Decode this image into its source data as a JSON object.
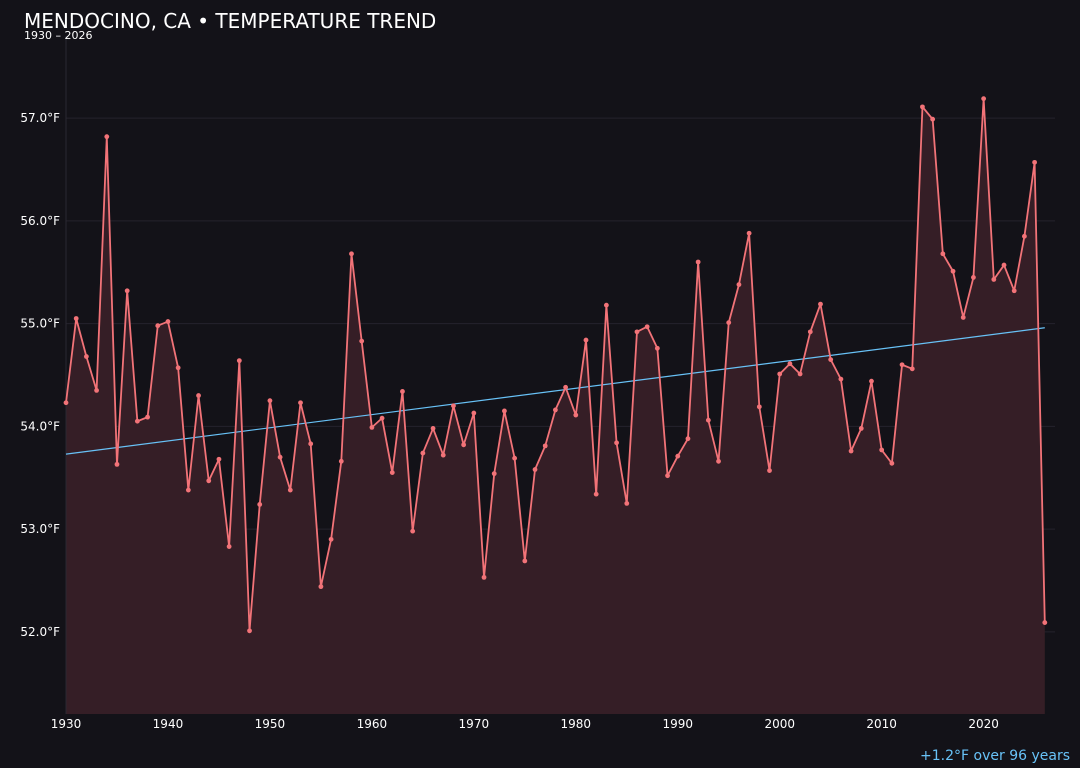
{
  "chart_data": {
    "type": "line",
    "title": "MENDOCINO, CA • TEMPERATURE TREND",
    "subtitle": "1930 – 2026",
    "xlabel": "",
    "ylabel": "",
    "xlim": [
      1930,
      2027
    ],
    "ylim": [
      51.2,
      57.8
    ],
    "x_ticks": [
      1930,
      1940,
      1950,
      1960,
      1970,
      1980,
      1990,
      2000,
      2010,
      2020
    ],
    "x_tick_labels": [
      "1930",
      "1940",
      "1950",
      "1960",
      "1970",
      "1980",
      "1990",
      "2000",
      "2010",
      "2020"
    ],
    "y_ticks": [
      52,
      53,
      54,
      55,
      56,
      57
    ],
    "y_tick_labels": [
      "52.0°F",
      "53.0°F",
      "54.0°F",
      "55.0°F",
      "56.0°F",
      "57.0°F"
    ],
    "grid": true,
    "series": [
      {
        "x": [
          1930,
          1931,
          1932,
          1933,
          1934,
          1935,
          1936,
          1937,
          1938,
          1939,
          1940,
          1941,
          1942,
          1943,
          1944,
          1945,
          1946,
          1947,
          1948,
          1949,
          1950,
          1951,
          1952,
          1953,
          1954,
          1955,
          1956,
          1957,
          1958,
          1959,
          1960,
          1961,
          1962,
          1963,
          1964,
          1965,
          1966,
          1967,
          1968,
          1969,
          1970,
          1971,
          1972,
          1973,
          1974,
          1975,
          1976,
          1977,
          1978,
          1979,
          1980,
          1981,
          1982,
          1983,
          1984,
          1985,
          1986,
          1987,
          1988,
          1989,
          1990,
          1991,
          1992,
          1993,
          1994,
          1995,
          1996,
          1997,
          1998,
          1999,
          2000,
          2001,
          2002,
          2003,
          2004,
          2005,
          2006,
          2007,
          2008,
          2009,
          2010,
          2011,
          2012,
          2013,
          2014,
          2015,
          2016,
          2017,
          2018,
          2019,
          2020,
          2021,
          2022,
          2023,
          2024,
          2025,
          2026
        ],
        "values": [
          54.23,
          55.05,
          54.68,
          54.35,
          56.82,
          53.63,
          55.32,
          54.05,
          54.09,
          54.98,
          55.02,
          54.57,
          53.38,
          54.3,
          53.47,
          53.68,
          52.83,
          54.64,
          52.01,
          53.24,
          54.25,
          53.7,
          53.38,
          54.23,
          53.83,
          52.44,
          52.9,
          53.66,
          55.68,
          54.83,
          53.99,
          54.08,
          53.55,
          54.34,
          52.98,
          53.74,
          53.98,
          53.72,
          54.2,
          53.82,
          54.13,
          52.53,
          53.54,
          54.15,
          53.69,
          52.69,
          53.58,
          53.81,
          54.16,
          54.38,
          54.11,
          54.84,
          53.34,
          55.18,
          53.84,
          53.25,
          54.92,
          54.97,
          54.76,
          53.52,
          53.71,
          53.88,
          55.6,
          54.06,
          53.66,
          55.01,
          55.38,
          55.88,
          54.19,
          53.57,
          54.51,
          54.61,
          54.51,
          54.92,
          55.19,
          54.65,
          54.46,
          53.76,
          53.98,
          54.44,
          53.77,
          53.64,
          54.6,
          54.56,
          57.11,
          56.99,
          55.68,
          55.51,
          55.06,
          55.45,
          57.19,
          55.43,
          55.57,
          55.32,
          55.85,
          56.57,
          52.09
        ]
      }
    ],
    "trend": {
      "start": [
        1930,
        53.73
      ],
      "end": [
        2026,
        54.96
      ],
      "label": "+1.2°F over 96 years"
    },
    "colors": {
      "background": "#131218",
      "line": "#f27378",
      "area": "#351e26",
      "trend": "#68c2f7",
      "grid": "#25232c"
    }
  }
}
